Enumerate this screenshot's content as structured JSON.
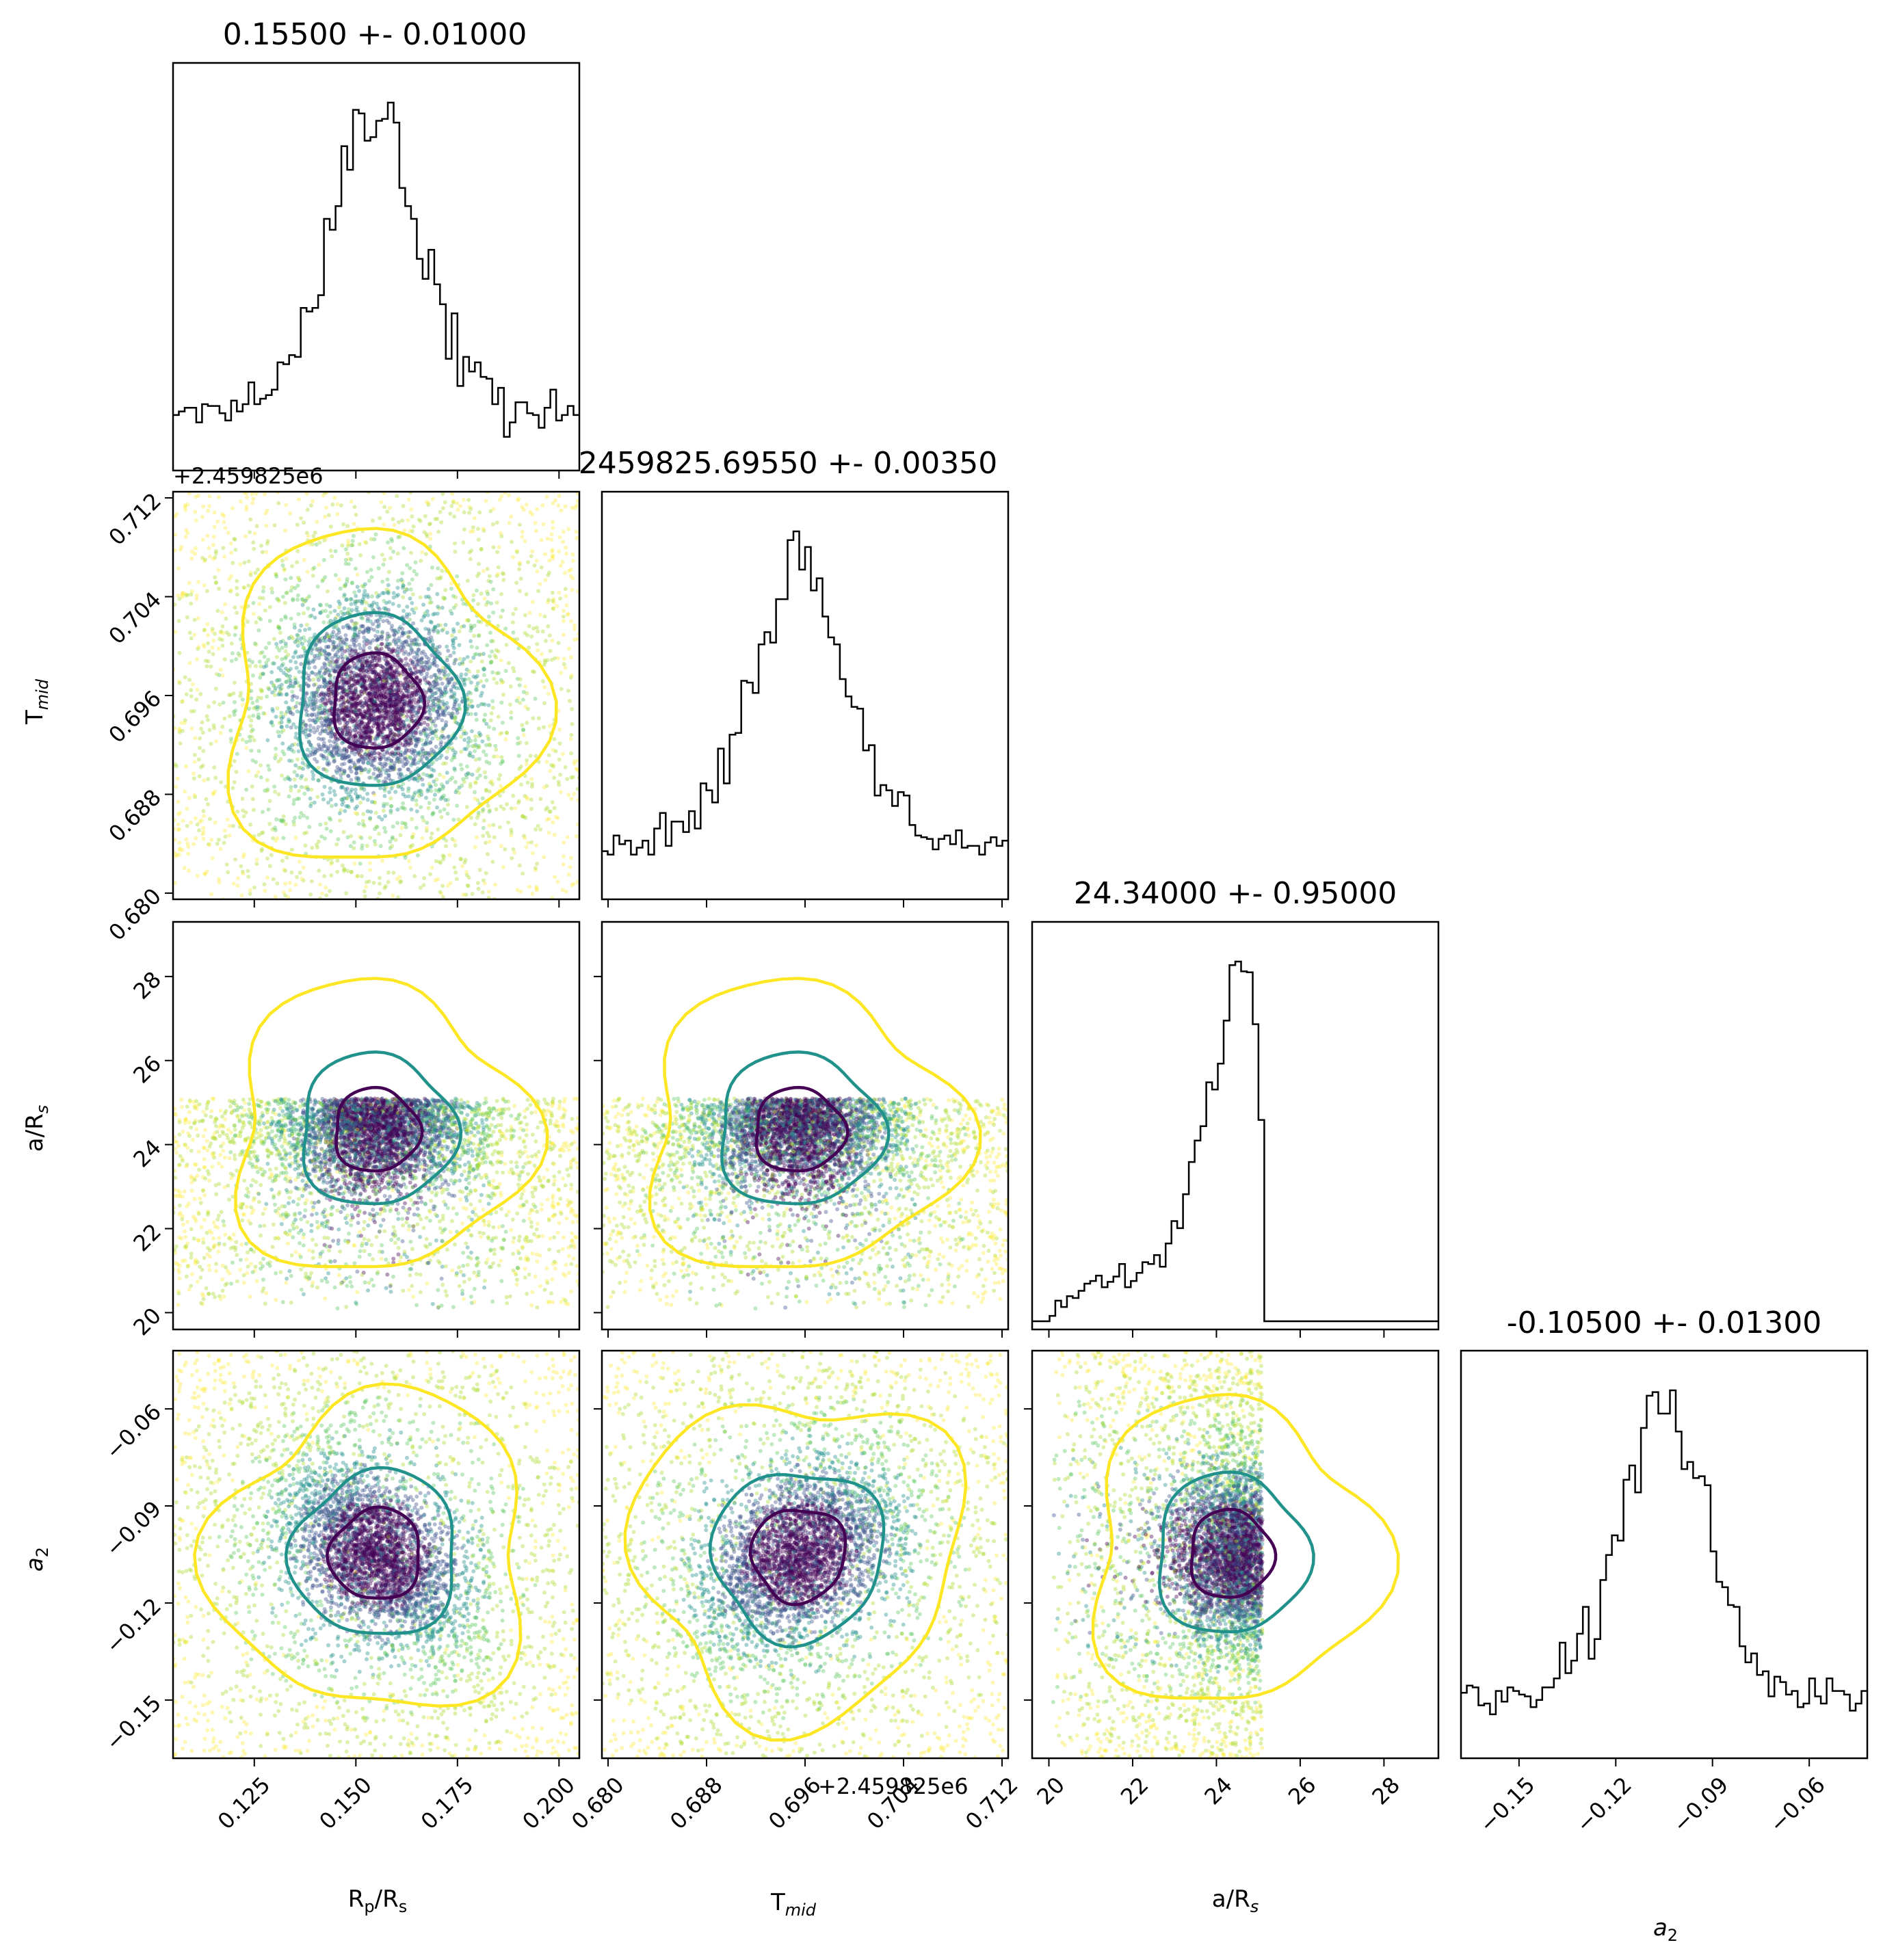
{
  "chart_data": {
    "type": "corner",
    "parameters": [
      {
        "key": "rp",
        "label": "Rp/Rs",
        "range": [
          0.105,
          0.205
        ],
        "ticks": [
          0.125,
          0.15,
          0.175,
          0.2
        ],
        "tick_labels": [
          "0.125",
          "0.150",
          "0.175",
          "0.200"
        ]
      },
      {
        "key": "tmid",
        "label": "Tmid",
        "range": [
          0.6795,
          0.7125
        ],
        "ticks": [
          0.68,
          0.688,
          0.696,
          0.704,
          0.712
        ],
        "tick_labels": [
          "0.680",
          "0.688",
          "0.696",
          "0.704",
          "0.712"
        ],
        "offset_text": "+2.459825e6"
      },
      {
        "key": "ar",
        "label": "a/Rs",
        "range": [
          19.6,
          29.3
        ],
        "ticks": [
          20,
          22,
          24,
          26,
          28
        ],
        "tick_labels": [
          "20",
          "22",
          "24",
          "26",
          "28"
        ]
      },
      {
        "key": "a2",
        "label": "a2",
        "range": [
          -0.168,
          -0.042
        ],
        "ticks": [
          -0.15,
          -0.12,
          -0.09,
          -0.06
        ],
        "tick_labels": [
          "−0.15",
          "−0.12",
          "−0.09",
          "−0.06"
        ]
      }
    ],
    "titles": [
      "0.15500 +- 0.01000",
      "2459825.69550 +- 0.00350",
      "24.34000 +- 0.95000",
      "-0.10500 +- 0.01300"
    ],
    "marginals": [
      {
        "param": "rp",
        "mean": 0.155,
        "sigma": 0.01
      },
      {
        "param": "tmid",
        "mean": 0.6955,
        "sigma": 0.0035
      },
      {
        "param": "ar",
        "mean": 24.34,
        "sigma": 0.95,
        "upper_bound": 25.1
      },
      {
        "param": "a2",
        "mean": -0.105,
        "sigma": 0.013
      }
    ],
    "correlations": {
      "rp_tmid": 0.0,
      "rp_ar": 0.0,
      "rp_a2": -0.45,
      "tmid_ar": 0.0,
      "tmid_a2": 0.35,
      "ar_a2": 0.0
    },
    "contour_colors": [
      "#440154",
      "#21918c",
      "#fde725"
    ],
    "colormap": "viridis",
    "grid": false
  },
  "labels": {
    "x_rp": "R",
    "x_rp_sub": "p",
    "x_rp_tail": "/R",
    "x_rp_sub2": "s",
    "x_tmid": "T",
    "x_tmid_sub": "mid",
    "x_ar": "a/R",
    "x_ar_sub": "s",
    "x_a2": "a",
    "x_a2_sub": "2"
  }
}
